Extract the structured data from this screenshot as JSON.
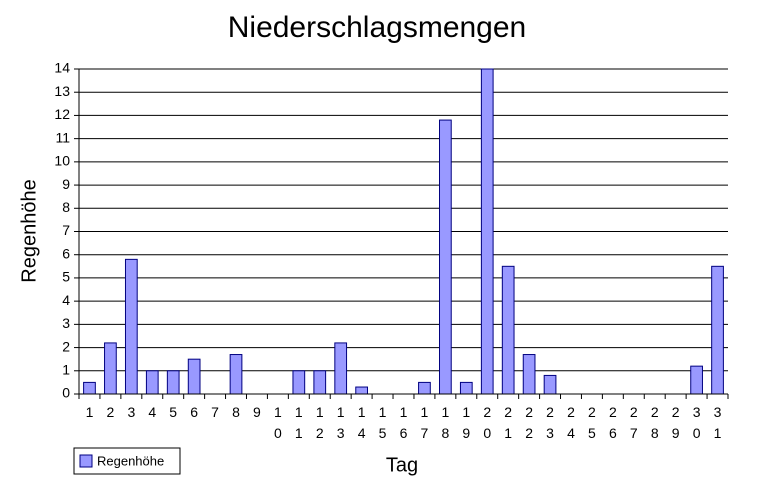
{
  "chart_data": {
    "type": "bar",
    "title": "Niederschlagsmengen",
    "x_label": "Tag",
    "y_label": "Regenhöhe",
    "categories": [
      "1",
      "2",
      "3",
      "4",
      "5",
      "6",
      "7",
      "8",
      "9",
      "10",
      "11",
      "12",
      "13",
      "14",
      "15",
      "16",
      "17",
      "18",
      "19",
      "20",
      "21",
      "22",
      "23",
      "24",
      "25",
      "26",
      "27",
      "28",
      "29",
      "30",
      "31"
    ],
    "series": [
      {
        "name": "Regenhöhe",
        "color": "#9999ff",
        "values": [
          0.5,
          2.2,
          5.8,
          1,
          1,
          1.5,
          0,
          1.7,
          0,
          0,
          1,
          1,
          2.2,
          0.3,
          0,
          0,
          0.5,
          11.8,
          0.5,
          14,
          5.5,
          1.7,
          0.8,
          0,
          0,
          0,
          0,
          0,
          0,
          1.2,
          5.5
        ]
      }
    ],
    "ylim": [
      0,
      14
    ],
    "yticks": [
      0,
      1,
      2,
      3,
      4,
      5,
      6,
      7,
      8,
      9,
      10,
      11,
      12,
      13,
      14
    ],
    "grid": true,
    "legend": "bottom-left"
  }
}
